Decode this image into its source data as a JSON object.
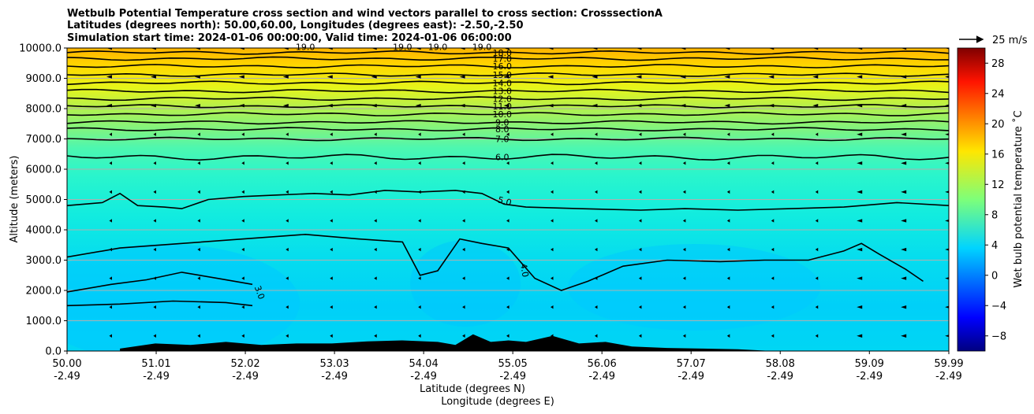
{
  "chart_data": {
    "type": "heatmap",
    "title_lines": [
      "Wetbulb Potential Temperature cross section and wind vectors parallel to cross section: CrosssectionA",
      "Latitudes (degrees north): 50.00,60.00, Longitudes (degrees east): -2.50,-2.50",
      "Simulation start time: 2024-01-06 00:00:00, Valid time: 2024-01-06 06:00:00"
    ],
    "ylabel": "Altitude (meters)",
    "xlabel_lat": "Latitude (degrees N)",
    "xlabel_lon": "Longitude (degrees E)",
    "colorbar_label": "Wet bulb potential temperature ˚C",
    "colorbar_range": [
      -10,
      30
    ],
    "colorbar_ticks": [
      "−8",
      "−4",
      "0",
      "4",
      "8",
      "12",
      "16",
      "20",
      "24",
      "28"
    ],
    "colorbar_tick_values": [
      -8,
      -4,
      0,
      4,
      8,
      12,
      16,
      20,
      24,
      28
    ],
    "wind_key_label": "25 m/s",
    "ylim": [
      0,
      10000
    ],
    "y_ticks": [
      "0.0",
      "1000.0",
      "2000.0",
      "3000.0",
      "4000.0",
      "5000.0",
      "6000.0",
      "7000.0",
      "8000.0",
      "9000.0",
      "10000.0"
    ],
    "y_tick_values": [
      0,
      1000,
      2000,
      3000,
      4000,
      5000,
      6000,
      7000,
      8000,
      9000,
      10000
    ],
    "xlim": [
      50.0,
      59.99
    ],
    "x_tick_values": [
      50.0,
      51.01,
      52.02,
      53.03,
      54.04,
      55.05,
      56.06,
      57.07,
      58.08,
      59.09,
      59.99
    ],
    "x_ticks_lat": [
      "50.00",
      "51.01",
      "52.02",
      "53.03",
      "54.04",
      "55.05",
      "56.06",
      "57.07",
      "58.08",
      "59.09",
      "59.99"
    ],
    "x_ticks_lon": [
      "-2.49",
      "-2.49",
      "-2.49",
      "-2.49",
      "-2.49",
      "-2.49",
      "-2.49",
      "-2.49",
      "-2.49",
      "-2.49",
      "-2.49"
    ],
    "grid": "horizontal",
    "upper_levels": [
      {
        "label": "18.0",
        "value": 18,
        "alt": 9850
      },
      {
        "label": "17.0",
        "value": 17,
        "alt": 9650
      },
      {
        "label": "16.0",
        "value": 16,
        "alt": 9400
      },
      {
        "label": "15.0",
        "value": 15,
        "alt": 9120
      },
      {
        "label": "14.0",
        "value": 14,
        "alt": 8850
      },
      {
        "label": "13.0",
        "value": 13,
        "alt": 8580
      },
      {
        "label": "12.0",
        "value": 12,
        "alt": 8330
      },
      {
        "label": "11.0",
        "value": 11,
        "alt": 8080
      },
      {
        "label": "10.0",
        "value": 10,
        "alt": 7820
      },
      {
        "label": "9.0",
        "value": 9,
        "alt": 7550
      },
      {
        "label": "8.0",
        "value": 8,
        "alt": 7320
      },
      {
        "label": "7.0",
        "value": 7,
        "alt": 7000
      },
      {
        "label": "6.0",
        "value": 6,
        "alt": 6400
      }
    ],
    "top_labels": [
      "19.0",
      "19.0",
      "19.0",
      "19.0"
    ],
    "top_label_lats": [
      52.7,
      53.8,
      54.2,
      54.7
    ],
    "level_5": {
      "label": "5.0",
      "lat": [
        50.0,
        50.4,
        50.6,
        50.8,
        51.1,
        51.3,
        51.6,
        52.0,
        52.4,
        52.8,
        53.2,
        53.6,
        54.0,
        54.4,
        54.7,
        54.95,
        55.2,
        55.8,
        56.5,
        57.0,
        57.6,
        58.2,
        58.8,
        59.4,
        59.99
      ],
      "alt": [
        4800,
        4900,
        5200,
        4800,
        4750,
        4700,
        5000,
        5100,
        5150,
        5200,
        5150,
        5300,
        5250,
        5300,
        5200,
        4850,
        4750,
        4700,
        4650,
        4700,
        4650,
        4700,
        4750,
        4900,
        4800
      ]
    },
    "level_4": {
      "label": "4.0",
      "lat": [
        50.0,
        50.6,
        51.3,
        52.0,
        52.7,
        53.3,
        53.8,
        54.0,
        54.2,
        54.45,
        54.7,
        55.0,
        55.3,
        55.6,
        55.9,
        56.3,
        56.8,
        57.4,
        57.9,
        58.4,
        58.8,
        59.0,
        59.2,
        59.5,
        59.7
      ],
      "alt": [
        3100,
        3400,
        3550,
        3700,
        3850,
        3700,
        3600,
        2500,
        2650,
        3700,
        3550,
        3400,
        2400,
        2000,
        2300,
        2800,
        3000,
        2950,
        3000,
        3000,
        3300,
        3550,
        3200,
        2700,
        2300
      ]
    },
    "level_3": {
      "label": "3.0",
      "lat": [
        50.0,
        50.5,
        50.9,
        51.3,
        51.7,
        52.1
      ],
      "alt": [
        1950,
        2200,
        2350,
        2600,
        2400,
        2200
      ]
    },
    "level_3b": {
      "lat": [
        50.0,
        50.6,
        51.2,
        51.8,
        52.1
      ],
      "alt": [
        1500,
        1550,
        1650,
        1600,
        1500
      ]
    },
    "terrain": {
      "lat": [
        50.6,
        51.0,
        51.4,
        51.8,
        52.2,
        52.6,
        53.0,
        53.4,
        53.8,
        54.2,
        54.4,
        54.6,
        54.8,
        55.0,
        55.2,
        55.5,
        55.8,
        56.1,
        56.4,
        56.8,
        57.2,
        57.6,
        58.0
      ],
      "alt": [
        80,
        250,
        200,
        300,
        200,
        250,
        250,
        320,
        350,
        300,
        200,
        550,
        300,
        350,
        300,
        500,
        250,
        300,
        150,
        100,
        80,
        60,
        0
      ]
    }
  }
}
